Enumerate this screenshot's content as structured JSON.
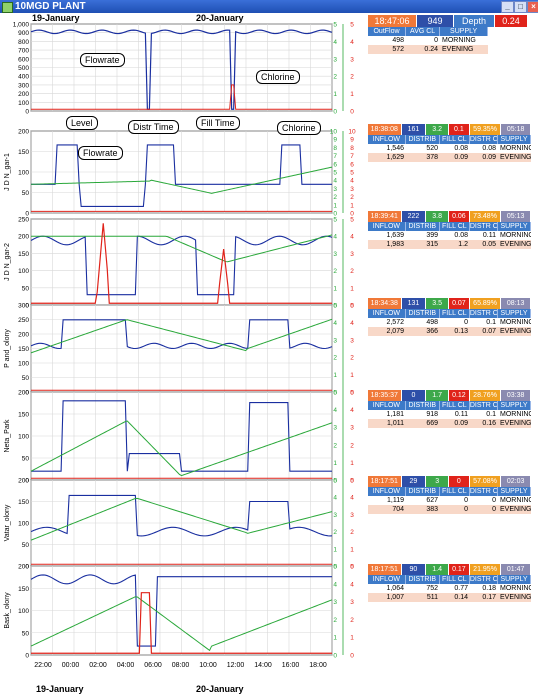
{
  "window": {
    "title": "10MGD PLANT",
    "minimize": "_",
    "maximize": "□",
    "close": "×"
  },
  "dates": {
    "top_left": "19-January",
    "top_right": "20-January",
    "bottom_left": "19-January",
    "bottom_right": "20-January"
  },
  "x_ticks": [
    "22:00",
    "00:00",
    "02:00",
    "04:00",
    "06:00",
    "08:00",
    "10:00",
    "12:00",
    "14:00",
    "16:00",
    "18:00"
  ],
  "plant": {
    "status": {
      "time": "18:47:06",
      "level": "949",
      "depth_label": "Depth",
      "depth": "0.24"
    },
    "headers": [
      "OutFlow",
      "AVG CL",
      "SUPPLY"
    ],
    "rows": [
      {
        "outflow": "498",
        "avg_cl": "0",
        "supply": "MORNING"
      },
      {
        "outflow": "572",
        "avg_cl": "0.24",
        "supply": "EVENING"
      }
    ]
  },
  "callouts": {
    "flowrate_top": "Flowrate",
    "chlorine_top": "Chlorine",
    "level": "Level",
    "flowrate_2": "Flowrate",
    "distr_time": "Distr Time",
    "fill_time": "Fill Time",
    "chlorine_2": "Chlorine"
  },
  "zone_headers": [
    "INFLOW",
    "DISTRIB",
    "FILL CL",
    "DISTR CL",
    "SUPPLY"
  ],
  "zones": [
    {
      "label": "J D N_gar-1",
      "status": [
        "18:38:08",
        "161",
        "3.2",
        "0.1",
        "59.35%",
        "05:18"
      ],
      "rows": [
        [
          "1,546",
          "520",
          "0.08",
          "0.08",
          "MORNING"
        ],
        [
          "1,629",
          "378",
          "0.09",
          "0.09",
          "EVENING"
        ]
      ]
    },
    {
      "label": "J D N_gar-2",
      "status": [
        "18:39:41",
        "222",
        "3.8",
        "0.06",
        "73.48%",
        "05:13"
      ],
      "rows": [
        [
          "1,639",
          "399",
          "0.08",
          "0.11",
          "MORNING"
        ],
        [
          "1,983",
          "315",
          "1.2",
          "0.05",
          "EVENING"
        ]
      ]
    },
    {
      "label": "P and_olony",
      "status": [
        "18:34:38",
        "131",
        "3.5",
        "0.07",
        "65.89%",
        "08:13"
      ],
      "rows": [
        [
          "2,572",
          "498",
          "0",
          "0.1",
          "MORNING"
        ],
        [
          "2,079",
          "366",
          "0.13",
          "0.07",
          "EVENING"
        ]
      ]
    },
    {
      "label": "Neta_Park",
      "status": [
        "18:35:37",
        "0",
        "1.7",
        "0.12",
        "28.76%",
        "03:38"
      ],
      "rows": [
        [
          "1,181",
          "918",
          "0.11",
          "0.1",
          "MORNING"
        ],
        [
          "1,011",
          "669",
          "0.09",
          "0.16",
          "EVENING"
        ]
      ]
    },
    {
      "label": "Vatar_olony",
      "status": [
        "18:17:51",
        "29",
        "3",
        "0",
        "57.08%",
        "02:03"
      ],
      "rows": [
        [
          "1,119",
          "627",
          "0",
          "0",
          "MORNING"
        ],
        [
          "704",
          "383",
          "0",
          "0",
          "EVENING"
        ]
      ]
    },
    {
      "label": "Bask_olony",
      "status": [
        "18:17:51",
        "90",
        "1.4",
        "0.17",
        "21.95%",
        "01:47"
      ],
      "rows": [
        [
          "1,064",
          "752",
          "0.77",
          "0.18",
          "MORNING"
        ],
        [
          "1,007",
          "511",
          "0.14",
          "0.17",
          "EVENING"
        ]
      ]
    }
  ],
  "panels": [
    {
      "label": "",
      "ylim": [
        0,
        1000
      ],
      "ticks": [
        "1,000",
        "900",
        "800",
        "700",
        "600",
        "500",
        "400",
        "300",
        "200",
        "100",
        "0"
      ],
      "right_ticks": [
        "5",
        "4",
        "3",
        "2",
        "1",
        "0"
      ]
    },
    {
      "label": "J D N_gar-1",
      "ylim": [
        0,
        200
      ],
      "ticks": [
        "200",
        "150",
        "100",
        "50",
        "0"
      ],
      "right_ticks": [
        "10",
        "9",
        "8",
        "7",
        "6",
        "5",
        "4",
        "3",
        "2",
        "1",
        "0"
      ]
    },
    {
      "label": "J D N_gar-2",
      "ylim": [
        0,
        250
      ],
      "ticks": [
        "250",
        "200",
        "150",
        "100",
        "50",
        "0"
      ],
      "right_ticks": [
        "5",
        "4",
        "3",
        "2",
        "1",
        "0"
      ]
    },
    {
      "label": "P and_olony",
      "ylim": [
        0,
        300
      ],
      "ticks": [
        "300",
        "250",
        "200",
        "150",
        "100",
        "50",
        "0"
      ],
      "right_ticks": [
        "5",
        "4",
        "3",
        "2",
        "1",
        "0"
      ]
    },
    {
      "label": "Neta_Park",
      "ylim": [
        0,
        200
      ],
      "ticks": [
        "200",
        "150",
        "100",
        "50",
        "0"
      ],
      "right_ticks": [
        "5",
        "4",
        "3",
        "2",
        "1",
        "0"
      ]
    },
    {
      "label": "Vatar_olony",
      "ylim": [
        0,
        200
      ],
      "ticks": [
        "200",
        "150",
        "100",
        "50",
        "0"
      ],
      "right_ticks": [
        "5",
        "4",
        "3",
        "2",
        "1",
        "0"
      ]
    },
    {
      "label": "Bask_olony",
      "ylim": [
        0,
        200
      ],
      "ticks": [
        "200",
        "150",
        "100",
        "50",
        "0"
      ],
      "right_ticks": [
        "5",
        "4",
        "3",
        "2",
        "1",
        "0"
      ]
    }
  ],
  "colors": {
    "flow": "#1a2fa0",
    "level": "#2aa83a",
    "chlorine": "#e0231a",
    "grid": "#d8d8d8",
    "right_axis": "#e0231a",
    "green_axis": "#2aa83a"
  }
}
